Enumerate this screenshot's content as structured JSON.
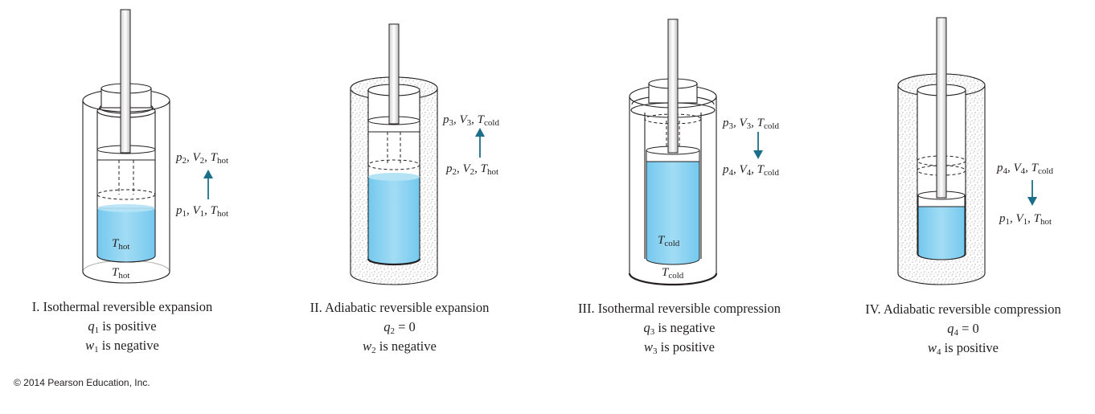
{
  "colors": {
    "liquid": "#8fd3f0",
    "liquid_deep": "#6fc7ef",
    "arrow": "#1b6f8a",
    "line": "#231f20"
  },
  "icons": [
    "cylinder-piston-icon",
    "insulation-jacket-icon",
    "up-arrow-icon",
    "down-arrow-icon"
  ],
  "panels": [
    {
      "id": "I",
      "reservoir": "hot",
      "caption": {
        "line1": "I. Isothermal reversible expansion",
        "q": "q",
        "q_sub": "1",
        "q_text": " is positive",
        "w": "w",
        "w_sub": "1",
        "w_text": " is negative"
      },
      "gas_label": {
        "T": "T",
        "sub": "hot"
      },
      "base_label": {
        "T": "T",
        "sub": "hot"
      },
      "state_top": {
        "p": "p",
        "p_sub": "2",
        "V": "V",
        "V_sub": "2",
        "T": "T",
        "T_sub": "hot"
      },
      "state_bottom": {
        "p": "p",
        "p_sub": "1",
        "V": "V",
        "V_sub": "1",
        "T": "T",
        "T_sub": "hot"
      }
    },
    {
      "id": "II",
      "reservoir": "insulated",
      "caption": {
        "line1": "II. Adiabatic reversible expansion",
        "q": "q",
        "q_sub": "2",
        "q_text": " = 0",
        "w": "w",
        "w_sub": "2",
        "w_text": " is negative"
      },
      "state_top": {
        "p": "p",
        "p_sub": "3",
        "V": "V",
        "V_sub": "3",
        "T": "T",
        "T_sub": "cold"
      },
      "state_bottom": {
        "p": "p",
        "p_sub": "2",
        "V": "V",
        "V_sub": "2",
        "T": "T",
        "T_sub": "hot"
      }
    },
    {
      "id": "III",
      "reservoir": "cold",
      "caption": {
        "line1": "III. Isothermal reversible compression",
        "q": "q",
        "q_sub": "3",
        "q_text": " is negative",
        "w": "w",
        "w_sub": "3",
        "w_text": " is positive"
      },
      "gas_label": {
        "T": "T",
        "sub": "cold"
      },
      "base_label": {
        "T": "T",
        "sub": "cold"
      },
      "state_top": {
        "p": "p",
        "p_sub": "3",
        "V": "V",
        "V_sub": "3",
        "T": "T",
        "T_sub": "cold"
      },
      "state_bottom": {
        "p": "p",
        "p_sub": "4",
        "V": "V",
        "V_sub": "4",
        "T": "T",
        "T_sub": "cold"
      }
    },
    {
      "id": "IV",
      "reservoir": "insulated",
      "caption": {
        "line1": "IV. Adiabatic reversible compression",
        "q": "q",
        "q_sub": "4",
        "q_text": " = 0",
        "w": "w",
        "w_sub": "4",
        "w_text": " is positive"
      },
      "state_top": {
        "p": "p",
        "p_sub": "4",
        "V": "V",
        "V_sub": "4",
        "T": "T",
        "T_sub": "cold"
      },
      "state_bottom": {
        "p": "p",
        "p_sub": "1",
        "V": "V",
        "V_sub": "1",
        "T": "T",
        "T_sub": "hot"
      }
    }
  ],
  "copyright": "© 2014 Pearson Education, Inc."
}
